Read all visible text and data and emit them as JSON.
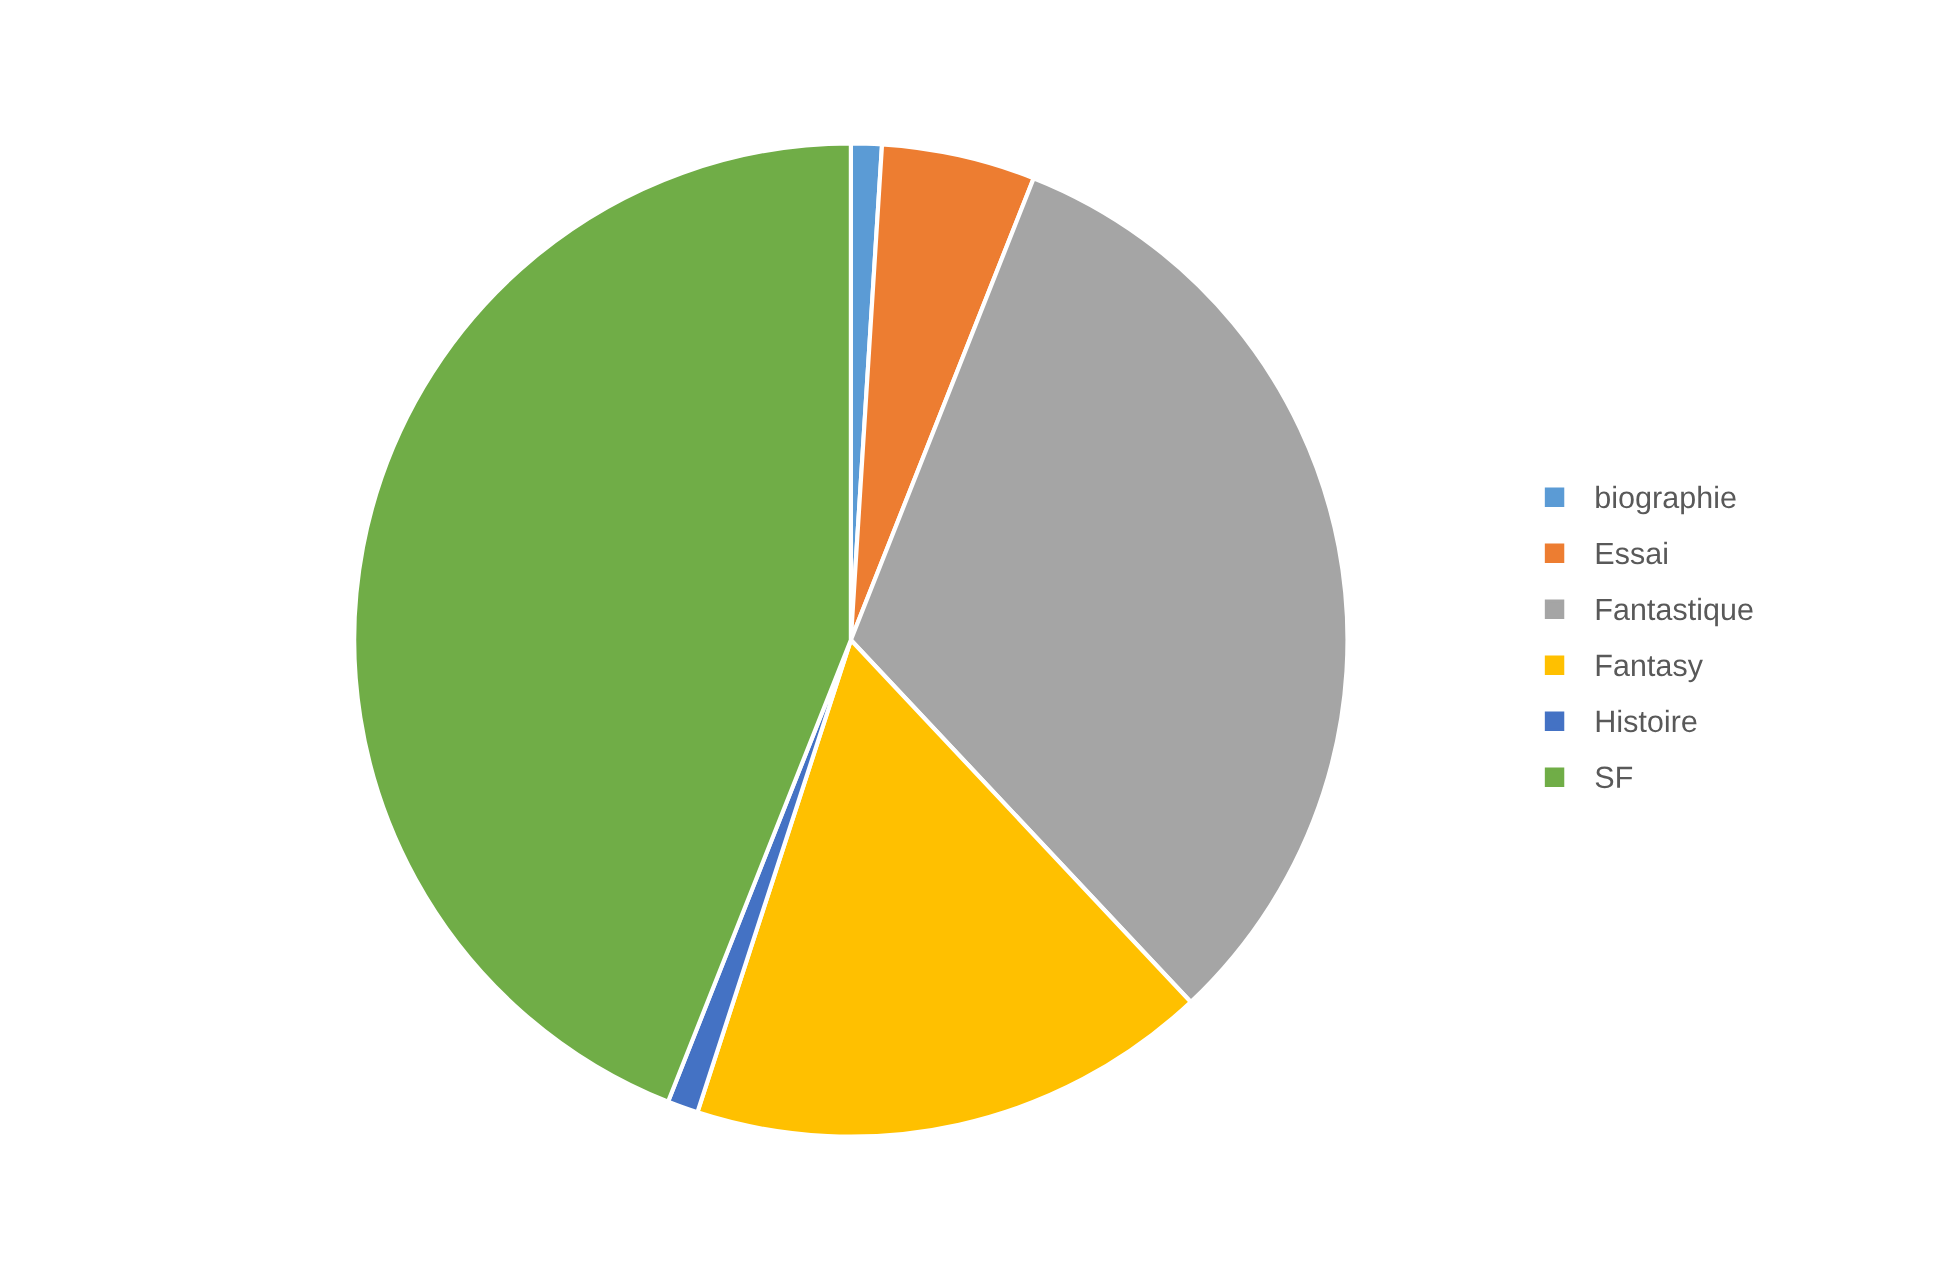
{
  "chart_data": {
    "type": "pie",
    "categories": [
      "biographie",
      "Essai",
      "Fantastique",
      "Fantasy",
      "Histoire",
      "SF"
    ],
    "values": [
      1,
      5,
      32,
      17,
      1,
      44
    ],
    "colors": [
      "#5b9bd5",
      "#ed7d31",
      "#a5a5a5",
      "#ffc000",
      "#4472c4",
      "#70ad47"
    ],
    "legend": "right"
  }
}
